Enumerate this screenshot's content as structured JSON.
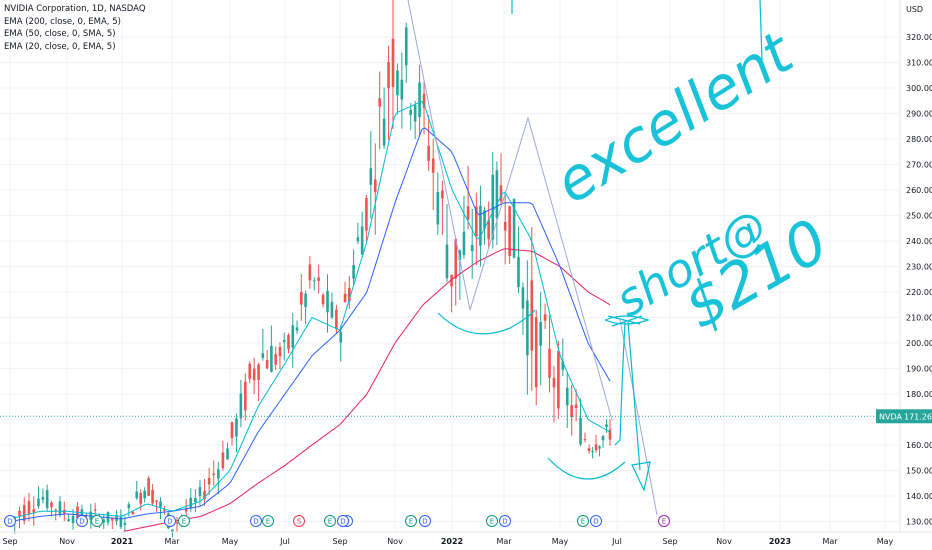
{
  "legend": {
    "symbol": "NVIDIA Corporation, 1D, NASDAQ",
    "ema200": "EMA (200, close, 0, EMA, 5)",
    "ema50": "EMA (50, close, 0, SMA, 5)",
    "ema20": "EMA (20, close, 0, EMA, 5)"
  },
  "price_axis": {
    "currency": "USD",
    "ticks": [
      "320.00",
      "310.00",
      "300.00",
      "290.00",
      "280.00",
      "270.00",
      "260.00",
      "250.00",
      "240.00",
      "230.00",
      "220.00",
      "210.00",
      "200.00",
      "190.00",
      "180.00",
      "170.00",
      "160.00",
      "150.00",
      "140.00",
      "130.00"
    ]
  },
  "time_axis": {
    "labels": [
      {
        "text": "Sep",
        "bold": false
      },
      {
        "text": "Nov",
        "bold": false
      },
      {
        "text": "2021",
        "bold": true
      },
      {
        "text": "Mar",
        "bold": false
      },
      {
        "text": "May",
        "bold": false
      },
      {
        "text": "Jul",
        "bold": false
      },
      {
        "text": "Sep",
        "bold": false
      },
      {
        "text": "Nov",
        "bold": false
      },
      {
        "text": "2022",
        "bold": true
      },
      {
        "text": "Mar",
        "bold": false
      },
      {
        "text": "May",
        "bold": false
      },
      {
        "text": "Jul",
        "bold": false
      },
      {
        "text": "Sep",
        "bold": false
      },
      {
        "text": "Nov",
        "bold": false
      },
      {
        "text": "2023",
        "bold": true
      },
      {
        "text": "Mar",
        "bold": false
      },
      {
        "text": "May",
        "bold": false
      }
    ]
  },
  "last_price": {
    "symbol": "NVDA",
    "value": "171.26",
    "price": 171.26
  },
  "annotation": {
    "lines": [
      "excellent",
      "short@",
      "$210"
    ]
  },
  "events": [
    {
      "text": "D",
      "color": "#2962ff"
    },
    {
      "text": "D",
      "color": "#2962ff"
    },
    {
      "text": "E",
      "color": "#089981"
    },
    {
      "text": "D",
      "color": "#2962ff"
    },
    {
      "text": "E",
      "color": "#089981"
    },
    {
      "text": "D",
      "color": "#2962ff"
    },
    {
      "text": "E",
      "color": "#089981"
    },
    {
      "text": "D",
      "color": "#2962ff"
    },
    {
      "text": "S",
      "color": "#f23645"
    },
    {
      "text": "E",
      "color": "#089981"
    },
    {
      "text": "D",
      "color": "#2962ff"
    },
    {
      "text": "E",
      "color": "#089981"
    },
    {
      "text": "D",
      "color": "#2962ff"
    },
    {
      "text": "E",
      "color": "#089981"
    },
    {
      "text": "D",
      "color": "#2962ff"
    },
    {
      "text": "E",
      "color": "#089981"
    },
    {
      "text": "D",
      "color": "#2962ff"
    },
    {
      "text": "E",
      "color": "#9c27b0"
    }
  ],
  "colors": {
    "up": "#26a69a",
    "down": "#ef5350",
    "ema200": "#e91e63",
    "ema50": "#2962ff",
    "ema20": "#00bcd4",
    "drawing": "#00bcd4",
    "zigzag": "#9fa8da",
    "last_price": "#26a69a",
    "grid": "#f0f3fa"
  },
  "chart_data": {
    "type": "candlestick",
    "title": "NVIDIA Corporation, 1D, NASDAQ",
    "ylabel": "USD",
    "ylim": [
      125,
      325
    ],
    "x": [
      "2020-09",
      "2020-10",
      "2020-11",
      "2020-12",
      "2021-01",
      "2021-02",
      "2021-03",
      "2021-04",
      "2021-05",
      "2021-06",
      "2021-07",
      "2021-08",
      "2021-09",
      "2021-10",
      "2021-11",
      "2021-12",
      "2022-01",
      "2022-02",
      "2022-03",
      "2022-04",
      "2022-05",
      "2022-06",
      "2022-07"
    ],
    "close": [
      130,
      140,
      133,
      132,
      130,
      145,
      128,
      140,
      160,
      195,
      195,
      225,
      205,
      255,
      320,
      290,
      230,
      245,
      260,
      205,
      185,
      160,
      165
    ],
    "high": [
      147,
      150,
      142,
      140,
      138,
      152,
      140,
      148,
      170,
      205,
      210,
      230,
      228,
      260,
      346,
      320,
      300,
      270,
      290,
      280,
      210,
      180,
      175
    ],
    "low": [
      120,
      130,
      125,
      126,
      125,
      128,
      125,
      130,
      140,
      160,
      180,
      190,
      198,
      205,
      250,
      265,
      210,
      215,
      230,
      185,
      160,
      156,
      157
    ],
    "series": [
      {
        "name": "EMA (200, close, 0, EMA, 5)",
        "values": [
          null,
          null,
          null,
          null,
          126,
          128,
          130,
          132,
          137,
          145,
          152,
          160,
          168,
          180,
          200,
          215,
          225,
          232,
          237,
          236,
          230,
          220,
          215
        ]
      },
      {
        "name": "EMA (50, close, 0, SMA, 5)",
        "values": [
          130,
          132,
          133,
          132,
          131,
          133,
          134,
          136,
          145,
          165,
          180,
          195,
          205,
          220,
          255,
          285,
          275,
          250,
          255,
          255,
          230,
          200,
          185
        ]
      },
      {
        "name": "EMA (20, close, 0, EMA, 5)",
        "values": [
          131,
          134,
          134,
          133,
          132,
          137,
          134,
          138,
          150,
          175,
          192,
          210,
          205,
          240,
          290,
          295,
          260,
          240,
          260,
          240,
          195,
          170,
          165
        ]
      }
    ]
  }
}
